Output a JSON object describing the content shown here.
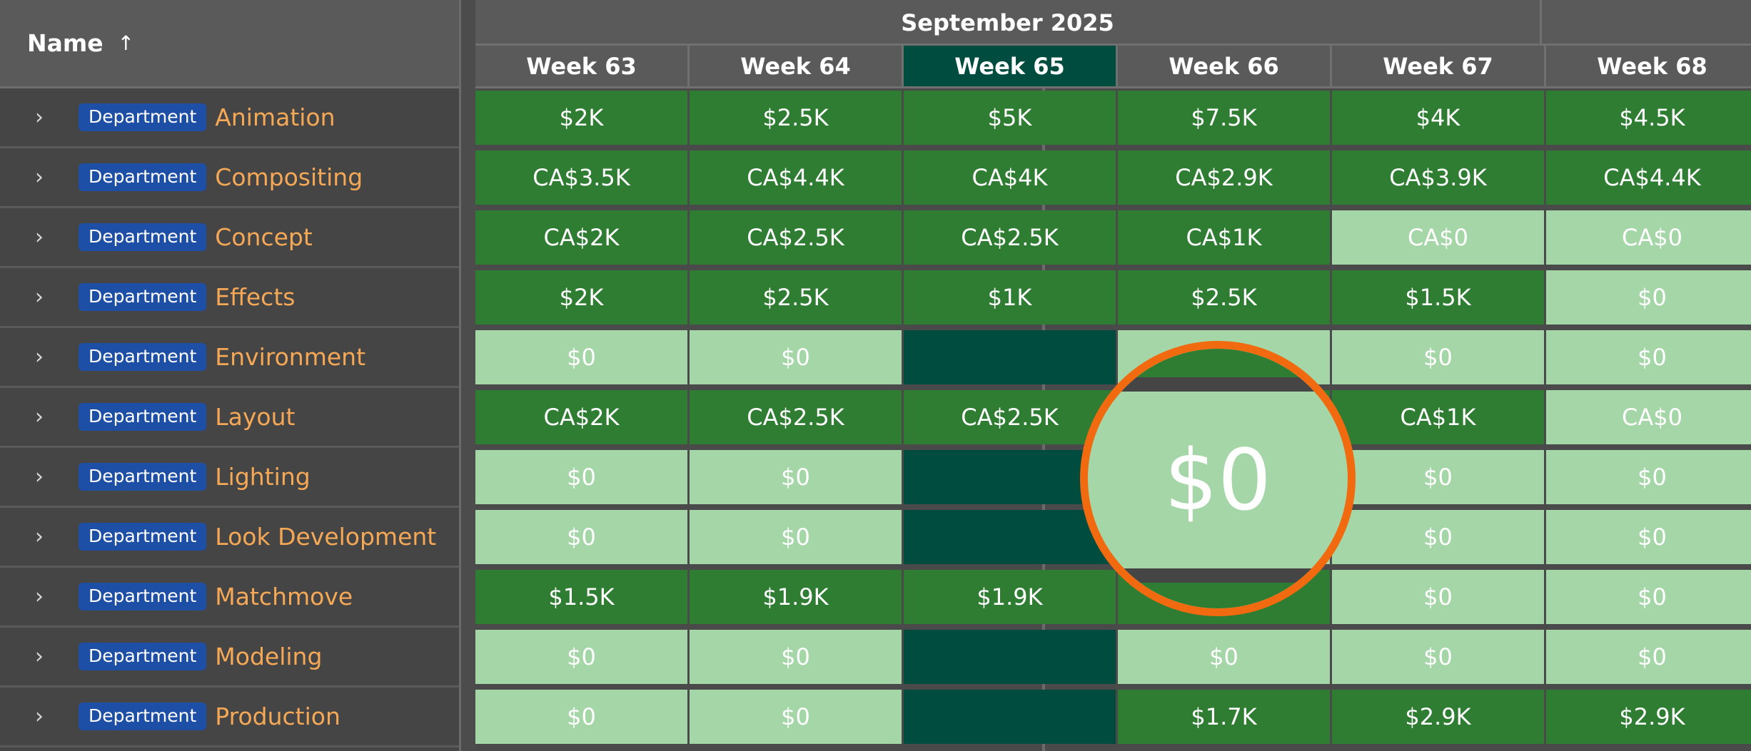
{
  "name_column": {
    "label": "Name",
    "sort_icon": "arrow-up-icon"
  },
  "month": {
    "label": "September 2025"
  },
  "weeks": [
    "Week 63",
    "Week 64",
    "Week 65",
    "Week 66",
    "Week 67",
    "Week 68"
  ],
  "current_week_index": 2,
  "colors": {
    "high": "#2e7d32",
    "low": "#a5d6a7",
    "current_week": "#004d40",
    "badge": "#1e4fa6",
    "dept_name": "#f5a855",
    "magnifier_ring": "#f26a0f"
  },
  "departments": [
    {
      "badge": "Department",
      "name": "Animation",
      "cells": [
        "$2K",
        "$2.5K",
        "$5K",
        "$7.5K",
        "$4K",
        "$4.5K"
      ]
    },
    {
      "badge": "Department",
      "name": "Compositing",
      "cells": [
        "CA$3.5K",
        "CA$4.4K",
        "CA$4K",
        "CA$2.9K",
        "CA$3.9K",
        "CA$4.4K"
      ]
    },
    {
      "badge": "Department",
      "name": "Concept",
      "cells": [
        "CA$2K",
        "CA$2.5K",
        "CA$2.5K",
        "CA$1K",
        "CA$0",
        "CA$0"
      ]
    },
    {
      "badge": "Department",
      "name": "Effects",
      "cells": [
        "$2K",
        "$2.5K",
        "$1K",
        "$2.5K",
        "$1.5K",
        "$0"
      ]
    },
    {
      "badge": "Department",
      "name": "Environment",
      "cells": [
        "$0",
        "$0",
        "",
        "",
        "$0",
        "$0"
      ]
    },
    {
      "badge": "Department",
      "name": "Layout",
      "cells": [
        "CA$2K",
        "CA$2.5K",
        "CA$2.5K",
        "",
        "CA$1K",
        "CA$0"
      ]
    },
    {
      "badge": "Department",
      "name": "Lighting",
      "cells": [
        "$0",
        "$0",
        "",
        "",
        "$0",
        "$0"
      ]
    },
    {
      "badge": "Department",
      "name": "Look Development",
      "cells": [
        "$0",
        "$0",
        "",
        "",
        "$0",
        "$0"
      ]
    },
    {
      "badge": "Department",
      "name": "Matchmove",
      "cells": [
        "$1.5K",
        "$1.9K",
        "$1.9K",
        "",
        "$0",
        "$0"
      ]
    },
    {
      "badge": "Department",
      "name": "Modeling",
      "cells": [
        "$0",
        "$0",
        "",
        "$0",
        "$0",
        "$0"
      ]
    },
    {
      "badge": "Department",
      "name": "Production",
      "cells": [
        "$0",
        "$0",
        "",
        "$1.7K",
        "$2.9K",
        "$2.9K"
      ]
    }
  ],
  "cell_levels": [
    [
      "high",
      "high",
      "high",
      "high",
      "high",
      "high"
    ],
    [
      "high",
      "high",
      "high",
      "high",
      "high",
      "high"
    ],
    [
      "high",
      "high",
      "high",
      "high",
      "low",
      "low"
    ],
    [
      "high",
      "high",
      "high",
      "high",
      "high",
      "low"
    ],
    [
      "low",
      "low",
      "current-empty",
      "low",
      "low",
      "low"
    ],
    [
      "high",
      "high",
      "high",
      "high",
      "high",
      "low"
    ],
    [
      "low",
      "low",
      "current-empty",
      "low",
      "low",
      "low"
    ],
    [
      "low",
      "low",
      "current-empty",
      "low",
      "low",
      "low"
    ],
    [
      "high",
      "high",
      "high",
      "high",
      "low",
      "low"
    ],
    [
      "low",
      "low",
      "current-empty",
      "low",
      "low",
      "low"
    ],
    [
      "low",
      "low",
      "current-empty",
      "high",
      "high",
      "high"
    ]
  ],
  "magnifier": {
    "value": "$0"
  }
}
